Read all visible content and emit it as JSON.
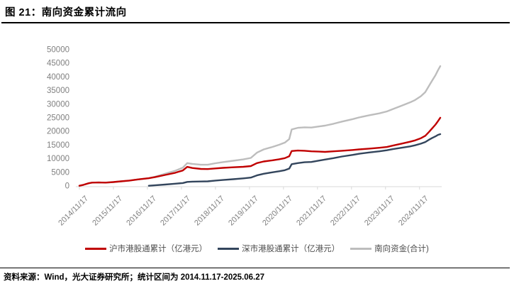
{
  "header": {
    "title": "图 21：南向资金累计流向"
  },
  "footer": {
    "text": "资料来源：Wind，光大证券研究所；统计区间为 2014.11.17-2025.06.27"
  },
  "colors": {
    "red_series": "#C00000",
    "navy_series": "#33455C",
    "gray_series": "#BDBDBD",
    "axis_line": "#D9D9D9",
    "tick_label": "#808080",
    "legend_text": "#4D4D4D",
    "rule": "#000000"
  },
  "chart_data": {
    "type": "line",
    "title": "南向资金累计流向",
    "xlabel": "",
    "ylabel": "",
    "unit": "亿港元",
    "ylim": [
      0,
      50000
    ],
    "y_tick_step": 5000,
    "y_tick_values": [
      0,
      5000,
      10000,
      15000,
      20000,
      25000,
      30000,
      35000,
      40000,
      45000,
      50000
    ],
    "y_tick_labels": [
      "0",
      "5000",
      "10000",
      "15000",
      "20000",
      "25000",
      "30000",
      "35000",
      "40000",
      "45000",
      "50000"
    ],
    "x_tick_labels": [
      "2014/11/17",
      "2015/11/17",
      "2016/11/17",
      "2017/11/17",
      "2018/11/17",
      "2019/11/17",
      "2020/11/17",
      "2021/11/17",
      "2022/11/17",
      "2023/11/17",
      "2024/11/17"
    ],
    "x_tick_years": [
      2014.88,
      2015.88,
      2016.88,
      2017.88,
      2018.88,
      2019.88,
      2020.88,
      2021.88,
      2022.88,
      2023.88,
      2024.88
    ],
    "x_range_years": [
      2014.88,
      2025.49
    ],
    "grid": false,
    "legend_position": "bottom",
    "series": [
      {
        "name": "沪市港股通累计（亿港元）",
        "color_key": "red_series",
        "x": [
          2014.88,
          2015.0,
          2015.15,
          2015.25,
          2015.45,
          2015.65,
          2015.88,
          2016.1,
          2016.35,
          2016.6,
          2016.92,
          2017.1,
          2017.4,
          2017.7,
          2017.92,
          2018.05,
          2018.2,
          2018.45,
          2018.65,
          2018.88,
          2019.1,
          2019.4,
          2019.7,
          2019.92,
          2020.1,
          2020.3,
          2020.55,
          2020.75,
          2020.92,
          2021.05,
          2021.12,
          2021.3,
          2021.5,
          2021.7,
          2021.92,
          2022.1,
          2022.35,
          2022.6,
          2022.92,
          2023.1,
          2023.4,
          2023.7,
          2023.92,
          2024.1,
          2024.35,
          2024.6,
          2024.75,
          2024.92,
          2025.05,
          2025.15,
          2025.25,
          2025.35,
          2025.42,
          2025.49
        ],
        "values": [
          0,
          350,
          900,
          1150,
          1200,
          1150,
          1350,
          1600,
          1900,
          2300,
          2750,
          3150,
          3950,
          4750,
          5600,
          6900,
          6500,
          6150,
          6100,
          6350,
          6550,
          6750,
          6950,
          7200,
          8300,
          8900,
          9300,
          9700,
          10100,
          10800,
          12700,
          12900,
          12800,
          12600,
          12500,
          12400,
          12600,
          12800,
          13100,
          13300,
          13600,
          13900,
          14200,
          14700,
          15400,
          16100,
          16600,
          17400,
          18300,
          19600,
          21000,
          22400,
          23600,
          24900
        ]
      },
      {
        "name": "深市港股通累计（亿港元）",
        "color_key": "navy_series",
        "x": [
          2016.92,
          2017.1,
          2017.4,
          2017.7,
          2017.92,
          2018.05,
          2018.2,
          2018.45,
          2018.65,
          2018.88,
          2019.1,
          2019.4,
          2019.7,
          2019.92,
          2020.1,
          2020.3,
          2020.55,
          2020.75,
          2020.92,
          2021.05,
          2021.12,
          2021.3,
          2021.5,
          2021.7,
          2021.92,
          2022.1,
          2022.35,
          2022.6,
          2022.92,
          2023.1,
          2023.4,
          2023.7,
          2023.92,
          2024.1,
          2024.35,
          2024.6,
          2024.75,
          2024.92,
          2025.05,
          2025.15,
          2025.25,
          2025.35,
          2025.42,
          2025.49
        ],
        "values": [
          0,
          150,
          450,
          750,
          1000,
          1400,
          1500,
          1550,
          1600,
          1900,
          2100,
          2400,
          2700,
          3000,
          3800,
          4400,
          4900,
          5300,
          5700,
          6300,
          7900,
          8300,
          8600,
          8700,
          9200,
          9600,
          10100,
          10700,
          11300,
          11700,
          12200,
          12600,
          13000,
          13400,
          13900,
          14400,
          14800,
          15400,
          16000,
          16800,
          17500,
          18100,
          18600,
          18900
        ]
      },
      {
        "name": "南向资金(合计)",
        "color_key": "gray_series",
        "x": [
          2014.88,
          2015.0,
          2015.15,
          2015.25,
          2015.45,
          2015.65,
          2015.88,
          2016.1,
          2016.35,
          2016.6,
          2016.92,
          2017.1,
          2017.4,
          2017.7,
          2017.92,
          2018.05,
          2018.2,
          2018.45,
          2018.65,
          2018.88,
          2019.1,
          2019.4,
          2019.7,
          2019.92,
          2020.1,
          2020.3,
          2020.55,
          2020.75,
          2020.92,
          2021.05,
          2021.12,
          2021.3,
          2021.5,
          2021.7,
          2021.92,
          2022.1,
          2022.35,
          2022.6,
          2022.92,
          2023.1,
          2023.4,
          2023.7,
          2023.92,
          2024.1,
          2024.35,
          2024.6,
          2024.75,
          2024.92,
          2025.05,
          2025.15,
          2025.25,
          2025.35,
          2025.42,
          2025.49
        ],
        "values": [
          0,
          350,
          900,
          1150,
          1200,
          1150,
          1350,
          1600,
          1900,
          2300,
          2750,
          3300,
          4400,
          5500,
          6600,
          8300,
          8000,
          7700,
          7700,
          8250,
          8650,
          9150,
          9650,
          10200,
          12100,
          13300,
          14200,
          15000,
          15800,
          17100,
          20600,
          21200,
          21400,
          21300,
          21700,
          22000,
          22700,
          23500,
          24400,
          25000,
          25800,
          26500,
          27200,
          28100,
          29300,
          30500,
          31400,
          32800,
          34300,
          36400,
          38500,
          40500,
          42200,
          43800
        ]
      }
    ]
  }
}
